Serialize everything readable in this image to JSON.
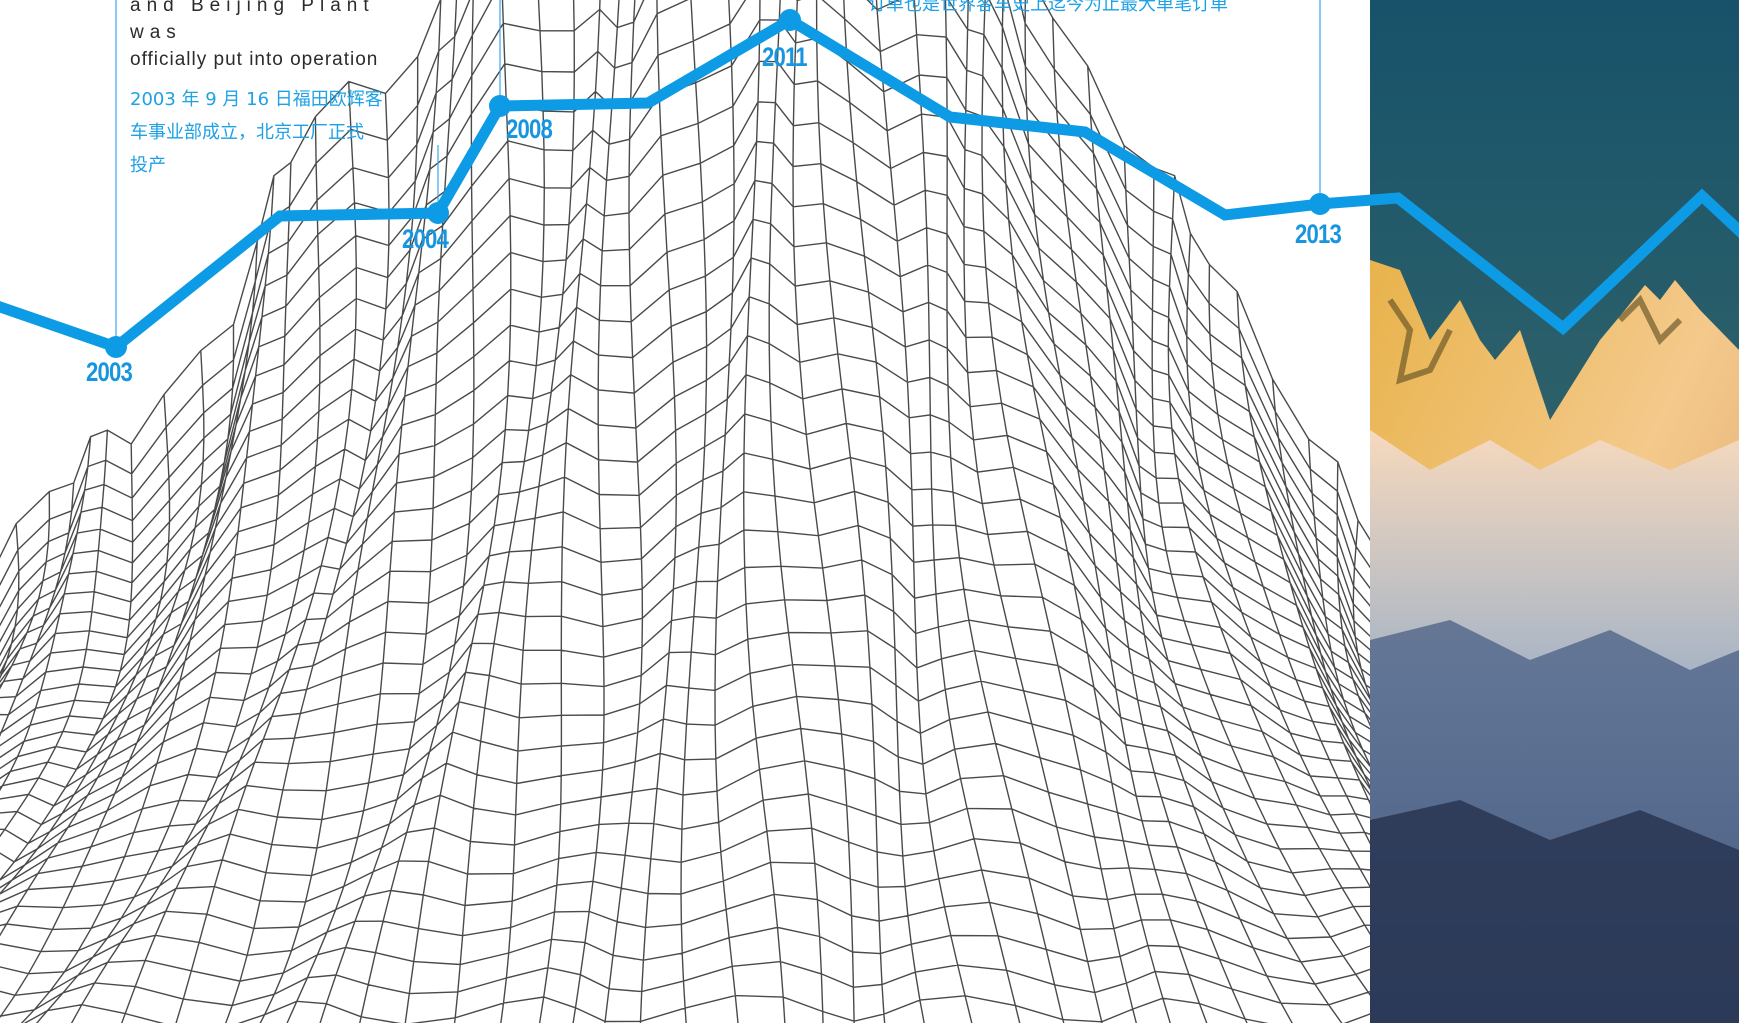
{
  "timeline": {
    "line_color": "#0e9be6",
    "milestones": [
      {
        "year": "2003"
      },
      {
        "year": "2004"
      },
      {
        "year": "2008"
      },
      {
        "year": "2011"
      },
      {
        "year": "2013"
      }
    ]
  },
  "notes": {
    "note_2003": {
      "en_line1": "and Beijing Plant was",
      "en_line2": "officially put into operation",
      "zh_line1": "2003 年 9 月 16 日福田欧辉客",
      "zh_line2": "车事业部成立，北京工厂正式",
      "zh_line3": "投产"
    },
    "note_2013": {
      "zh_line1": "订单也是世界客车史上迄今为止最大单笔订单"
    }
  },
  "photo": {
    "description_icon": "mountain-photo-icon",
    "sky_color": "#1f4f5f",
    "snow_color": "#f2c9a0"
  }
}
